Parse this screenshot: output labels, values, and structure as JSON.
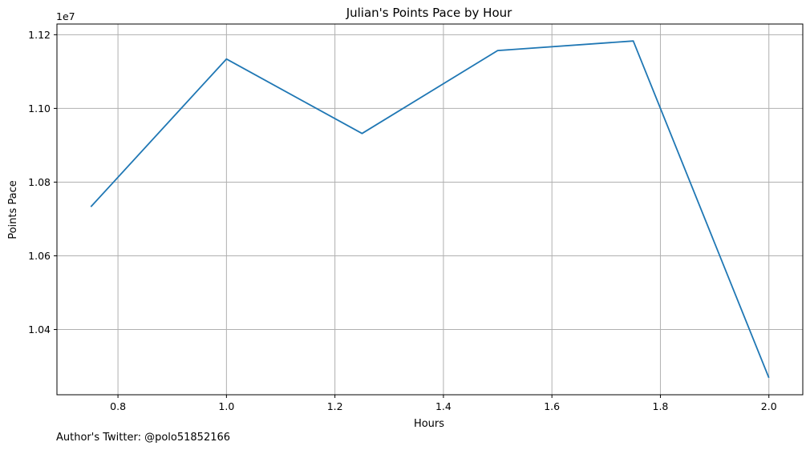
{
  "chart_data": {
    "type": "line",
    "title": "Julian's Points Pace by Hour",
    "xlabel": "Hours",
    "ylabel": "Points Pace",
    "y_offset_label": "1e7",
    "x": [
      0.75,
      1.0,
      1.25,
      1.5,
      1.75,
      2.0
    ],
    "series": [
      {
        "values": [
          10733000,
          11134000,
          10932000,
          11157000,
          11183000,
          10269000
        ]
      }
    ],
    "xlim": [
      0.6875,
      2.0625
    ],
    "ylim": [
      10223000,
      11229000
    ],
    "x_ticks": [
      0.8,
      1.0,
      1.2,
      1.4,
      1.6,
      1.8,
      2.0
    ],
    "x_tick_labels": [
      "0.8",
      "1.0",
      "1.2",
      "1.4",
      "1.6",
      "1.8",
      "2.0"
    ],
    "y_ticks": [
      10400000,
      10600000,
      10800000,
      11000000,
      11200000
    ],
    "y_tick_labels": [
      "1.04",
      "1.06",
      "1.08",
      "1.10",
      "1.12"
    ],
    "grid": true,
    "line_color": "#1f77b4",
    "grid_color": "#b0b0b0"
  },
  "footer": {
    "credit": "Author's Twitter: @polo51852166"
  }
}
